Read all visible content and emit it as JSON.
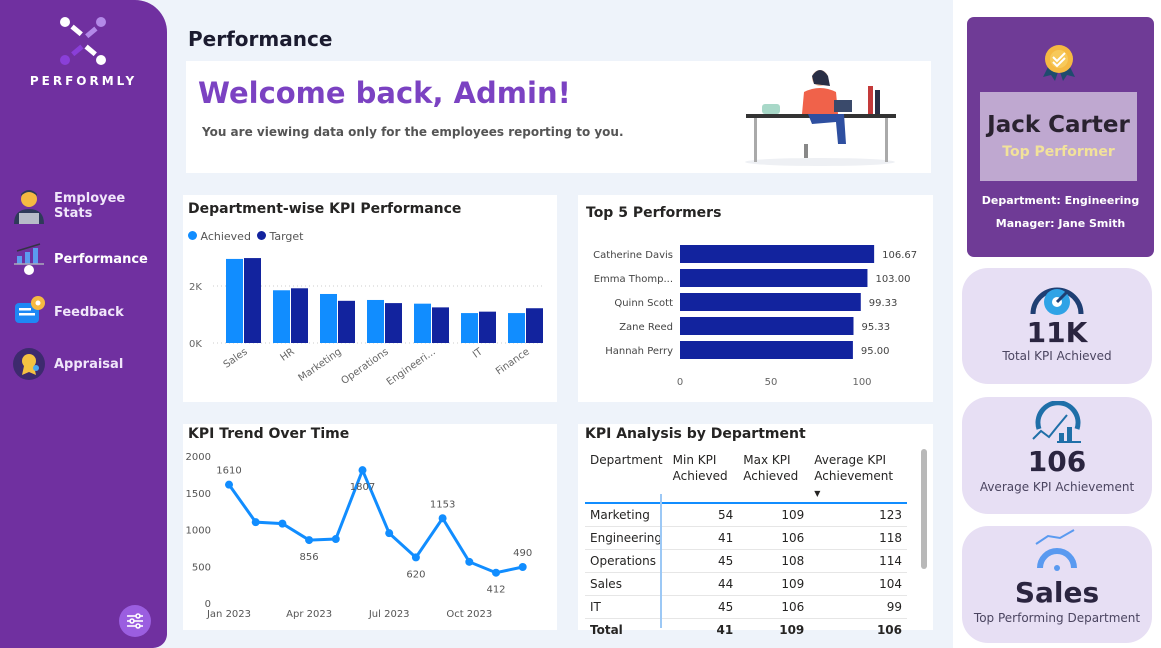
{
  "brand": {
    "name": "PERFORMLY"
  },
  "sidebar": {
    "items": [
      {
        "label": "Employee Stats",
        "icon": "employee-icon",
        "active": false
      },
      {
        "label": "Performance",
        "icon": "performance-chart-icon",
        "active": true
      },
      {
        "label": "Feedback",
        "icon": "feedback-icon",
        "active": false
      },
      {
        "label": "Appraisal",
        "icon": "appraisal-icon",
        "active": false
      }
    ],
    "settings_icon": "sliders-icon"
  },
  "header": {
    "title": "Performance"
  },
  "welcome": {
    "title": "Welcome back, Admin!",
    "subtitle": "You are viewing data only for the employees reporting to you."
  },
  "colors": {
    "sidebar": "#7030a0",
    "achieved": "#118dff",
    "target": "#12239e",
    "accent": "#7b42c2"
  },
  "chart_data": [
    {
      "type": "bar",
      "title": "Department-wise KPI Performance",
      "categories": [
        "Sales",
        "HR",
        "Marketing",
        "Operations",
        "Engineeri...",
        "IT",
        "Finance"
      ],
      "series": [
        {
          "name": "Achieved",
          "values": [
            2950,
            1850,
            1720,
            1510,
            1380,
            1050,
            1050
          ]
        },
        {
          "name": "Target",
          "values": [
            2980,
            1920,
            1480,
            1400,
            1250,
            1100,
            1220
          ]
        }
      ],
      "yticks": [
        "0K",
        "2K"
      ],
      "ylim": [
        0,
        3000
      ],
      "legend": "top-left",
      "grid": true
    },
    {
      "type": "bar",
      "orientation": "horizontal",
      "title": "Top 5 Performers",
      "categories": [
        "Catherine Davis",
        "Emma Thomp...",
        "Quinn Scott",
        "Zane Reed",
        "Hannah Perry"
      ],
      "values": [
        106.67,
        103.0,
        99.33,
        95.33,
        95.0
      ],
      "labels": [
        "106.67",
        "103.00",
        "99.33",
        "95.33",
        "95.00"
      ],
      "xticks": [
        "0",
        "50",
        "100"
      ],
      "xlim": [
        0,
        110
      ]
    },
    {
      "type": "line",
      "title": "KPI Trend Over Time",
      "x": [
        "Jan 2023",
        "Feb 2023",
        "Mar 2023",
        "Apr 2023",
        "May 2023",
        "Jun 2023",
        "Jul 2023",
        "Aug 2023",
        "Sep 2023",
        "Oct 2023",
        "Nov 2023",
        "Dec 2023"
      ],
      "values": [
        1610,
        1100,
        1080,
        856,
        870,
        1807,
        950,
        620,
        1153,
        560,
        412,
        490
      ],
      "labeled": {
        "0": "1610",
        "3": "856",
        "5": "1807",
        "7": "620",
        "8": "1153",
        "10": "412",
        "11": "490"
      },
      "xticks": [
        "Jan 2023",
        "Apr 2023",
        "Jul 2023",
        "Oct 2023"
      ],
      "yticks": [
        "0",
        "500",
        "1000",
        "1500",
        "2000"
      ],
      "ylim": [
        0,
        2000
      ]
    }
  ],
  "table": {
    "title": "KPI Analysis by Department",
    "headers": [
      "Department",
      "Min KPI Achieved",
      "Max KPI Achieved",
      "Average KPI Achievement"
    ],
    "rows": [
      [
        "Marketing",
        "54",
        "109",
        "123"
      ],
      [
        "Engineering",
        "41",
        "106",
        "118"
      ],
      [
        "Operations",
        "45",
        "108",
        "114"
      ],
      [
        "Sales",
        "44",
        "109",
        "104"
      ],
      [
        "IT",
        "45",
        "106",
        "99"
      ]
    ],
    "total": [
      "Total",
      "41",
      "109",
      "106"
    ],
    "sort": "Average KPI Achievement descending"
  },
  "top_performer": {
    "name": "Jack Carter",
    "badge": "Top Performer",
    "department": "Department: Engineering",
    "manager": "Manager: Jane Smith"
  },
  "kpis": [
    {
      "value": "11K",
      "label": "Total KPI Achieved",
      "icon": "speedometer-gear-icon"
    },
    {
      "value": "106",
      "label": "Average KPI Achievement",
      "icon": "gauge-chart-icon"
    },
    {
      "value": "Sales",
      "label": "Top Performing Department",
      "icon": "gauge-trend-icon"
    }
  ]
}
